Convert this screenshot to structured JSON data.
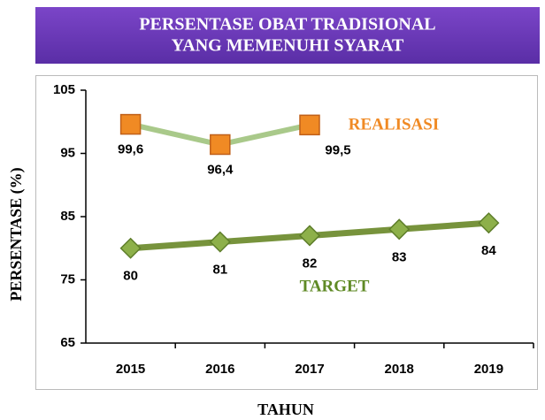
{
  "chart_data": {
    "type": "line",
    "title": [
      "PERSENTASE OBAT TRADISIONAL",
      "YANG MEMENUHI SYARAT"
    ],
    "x_label": "TAHUN",
    "y_label": "PERSENTASE  (%)",
    "categories": [
      "2015",
      "2016",
      "2017",
      "2018",
      "2019"
    ],
    "series": [
      {
        "name": "REALISASI",
        "color": "#a9c98a",
        "marker": "square",
        "marker_color": "#f08a24",
        "legend_color": "#f08a24",
        "values": [
          99.6,
          96.4,
          99.5,
          null,
          null
        ],
        "value_labels": [
          "99,6",
          "96,4",
          "99,5",
          null,
          null
        ]
      },
      {
        "name": "TARGET",
        "color": "#77933c",
        "marker": "diamond",
        "marker_color": "#8db04a",
        "legend_color": "#5f8a25",
        "values": [
          80,
          81,
          82,
          83,
          84
        ]
      }
    ],
    "ylim": [
      65,
      105
    ],
    "yticks": [
      65,
      75,
      85,
      95,
      105
    ],
    "grid": false
  }
}
